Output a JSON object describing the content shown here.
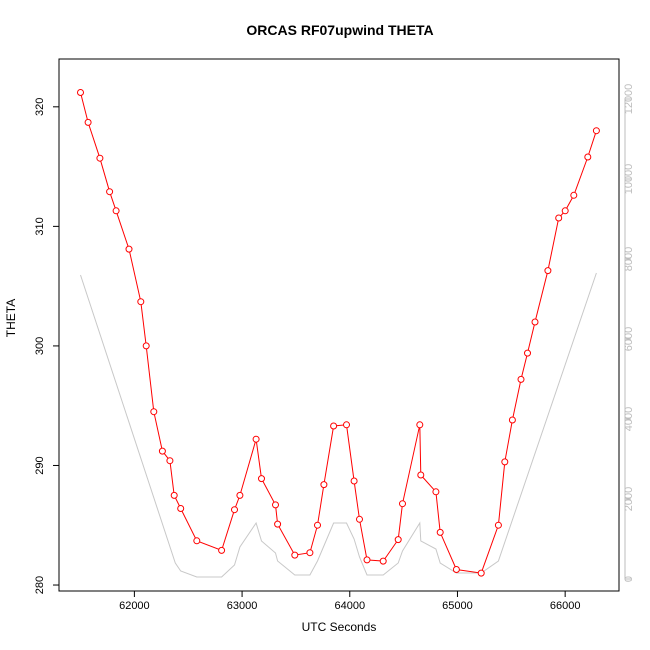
{
  "chart_data": {
    "type": "line",
    "title": "ORCAS RF07upwind THETA",
    "xlabel": "UTC Seconds",
    "ylabel": "THETA",
    "xlim": [
      61300,
      66500
    ],
    "ylim": [
      279.5,
      324
    ],
    "y2lim": [
      -300,
      13000
    ],
    "x_ticks": [
      62000,
      63000,
      64000,
      65000,
      66000
    ],
    "y_ticks": [
      280,
      290,
      300,
      310,
      320
    ],
    "y2_ticks": [
      0,
      2000,
      4000,
      6000,
      8000,
      10000,
      12000
    ],
    "colors": {
      "theta": "#ff0000",
      "altitude": "#c8c8c8",
      "right_axis": "#bdbdbd"
    },
    "series": [
      {
        "color": "#ff0000",
        "marker": "open-circle",
        "x": [
          61500,
          61570,
          61680,
          61770,
          61830,
          61950,
          62060,
          62110,
          62180,
          62260,
          62330,
          62370,
          62430,
          62580,
          62810,
          62930,
          62980,
          63130,
          63180,
          63310,
          63330,
          63490,
          63630,
          63700,
          63760,
          63850,
          63970,
          64040,
          64090,
          64160,
          64310,
          64450,
          64490,
          64650,
          64660,
          64800,
          64840,
          64990,
          65220,
          65380,
          65440,
          65510,
          65590,
          65650,
          65720,
          65840,
          65940,
          66000,
          66080,
          66210,
          66290
        ],
        "values": [
          321.2,
          318.7,
          315.7,
          312.9,
          311.3,
          308.1,
          303.7,
          300.0,
          294.5,
          291.2,
          290.4,
          287.5,
          286.4,
          283.7,
          282.9,
          286.3,
          287.5,
          292.2,
          288.9,
          286.7,
          285.1,
          282.5,
          282.7,
          285.0,
          288.4,
          293.3,
          293.4,
          288.7,
          285.5,
          282.1,
          282.0,
          283.8,
          286.8,
          293.4,
          289.2,
          287.8,
          284.4,
          281.3,
          281.0,
          285.0,
          290.3,
          293.8,
          297.2,
          299.4,
          302.0,
          306.3,
          310.7,
          311.3,
          312.6,
          315.8,
          318.0
        ]
      },
      {
        "color": "#c8c8c8",
        "axis": "right",
        "x": [
          61500,
          62380,
          62430,
          62580,
          62810,
          62930,
          62980,
          63130,
          63180,
          63310,
          63330,
          63490,
          63630,
          63700,
          63850,
          63970,
          64040,
          64090,
          64160,
          64310,
          64450,
          64490,
          64650,
          64660,
          64800,
          64840,
          64990,
          65220,
          65380,
          66290
        ],
        "values": [
          7600,
          400,
          200,
          50,
          50,
          350,
          800,
          1400,
          950,
          650,
          450,
          100,
          100,
          450,
          1400,
          1400,
          1000,
          550,
          100,
          100,
          400,
          700,
          1400,
          950,
          750,
          400,
          150,
          150,
          450,
          7650
        ]
      }
    ]
  }
}
